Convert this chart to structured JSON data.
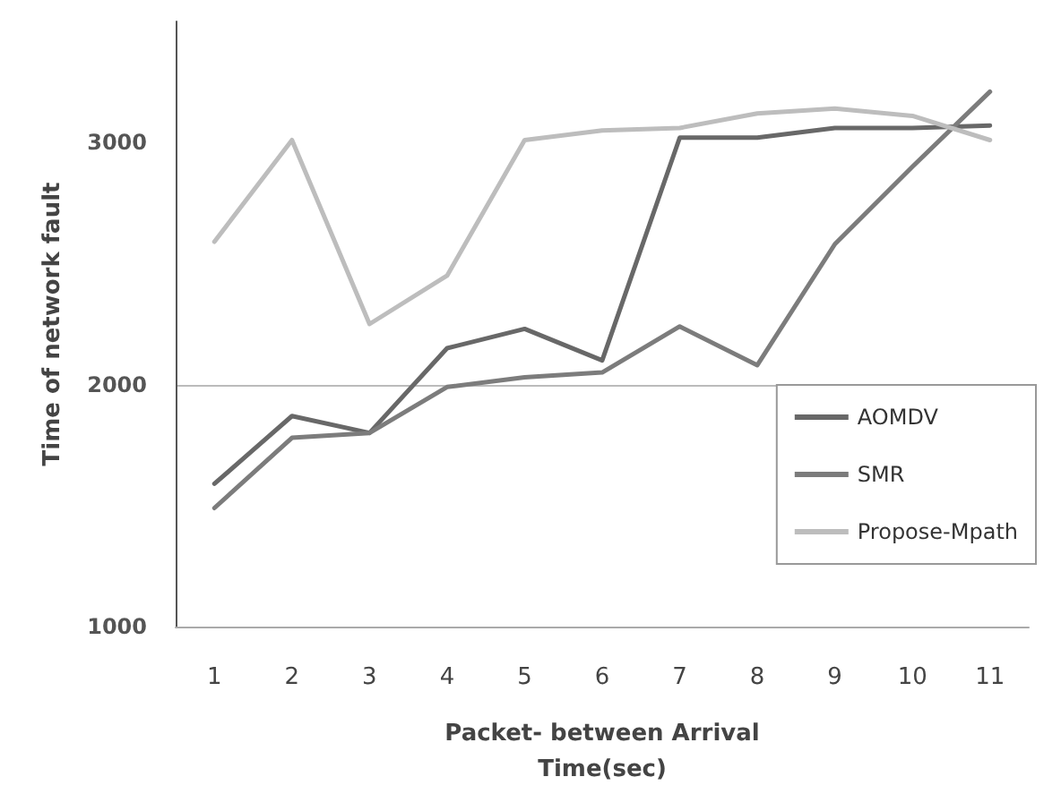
{
  "chart_data": {
    "type": "line",
    "xlabel": "Packet- between Arrival\nTime(sec)",
    "ylabel": "Time of network fault",
    "categories": [
      "1",
      "2",
      "3",
      "4",
      "5",
      "6",
      "7",
      "8",
      "9",
      "10",
      "11"
    ],
    "series": [
      {
        "name": "AOMDV",
        "color": "#686868",
        "values": [
          1590,
          1870,
          1800,
          2150,
          2230,
          2100,
          3020,
          3020,
          3060,
          3060,
          3070
        ]
      },
      {
        "name": "SMR",
        "color": "#7c7c7c",
        "values": [
          1490,
          1780,
          1800,
          1990,
          2030,
          2050,
          2240,
          2080,
          2580,
          2900,
          3210
        ]
      },
      {
        "name": "Propose-Mpath",
        "color": "#bdbdbd",
        "values": [
          2590,
          3010,
          2250,
          2450,
          3010,
          3050,
          3060,
          3120,
          3140,
          3110,
          3010
        ]
      }
    ],
    "ylim": [
      1000,
      3500
    ],
    "yticks": [
      1000,
      2000,
      3000
    ],
    "grid": "y",
    "legend": "right",
    "marker": "none",
    "line_style": "solid"
  }
}
